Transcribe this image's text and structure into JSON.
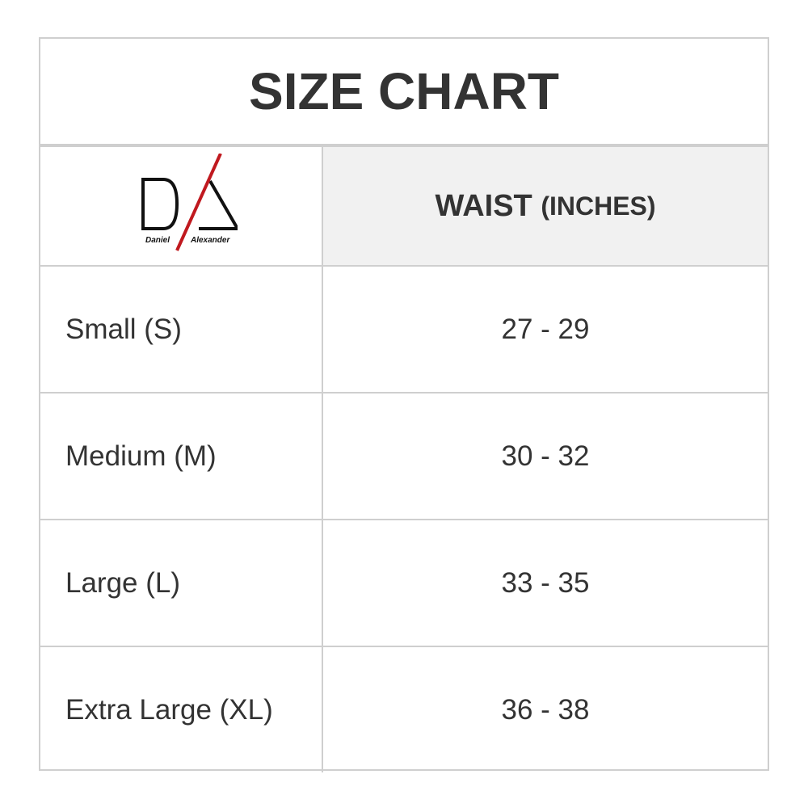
{
  "title": "SIZE CHART",
  "logo": {
    "text_left": "Daniel",
    "text_right": "Alexander",
    "accent": "#c0191f"
  },
  "header": {
    "col2_main": "WAIST",
    "col2_unit": "(INCHES)"
  },
  "rows": [
    {
      "size": "Small (S)",
      "waist": "27 - 29"
    },
    {
      "size": "Medium (M)",
      "waist": "30 - 32"
    },
    {
      "size": "Large (L)",
      "waist": "33 - 35"
    },
    {
      "size": "Extra Large (XL)",
      "waist": "36 - 38"
    }
  ]
}
